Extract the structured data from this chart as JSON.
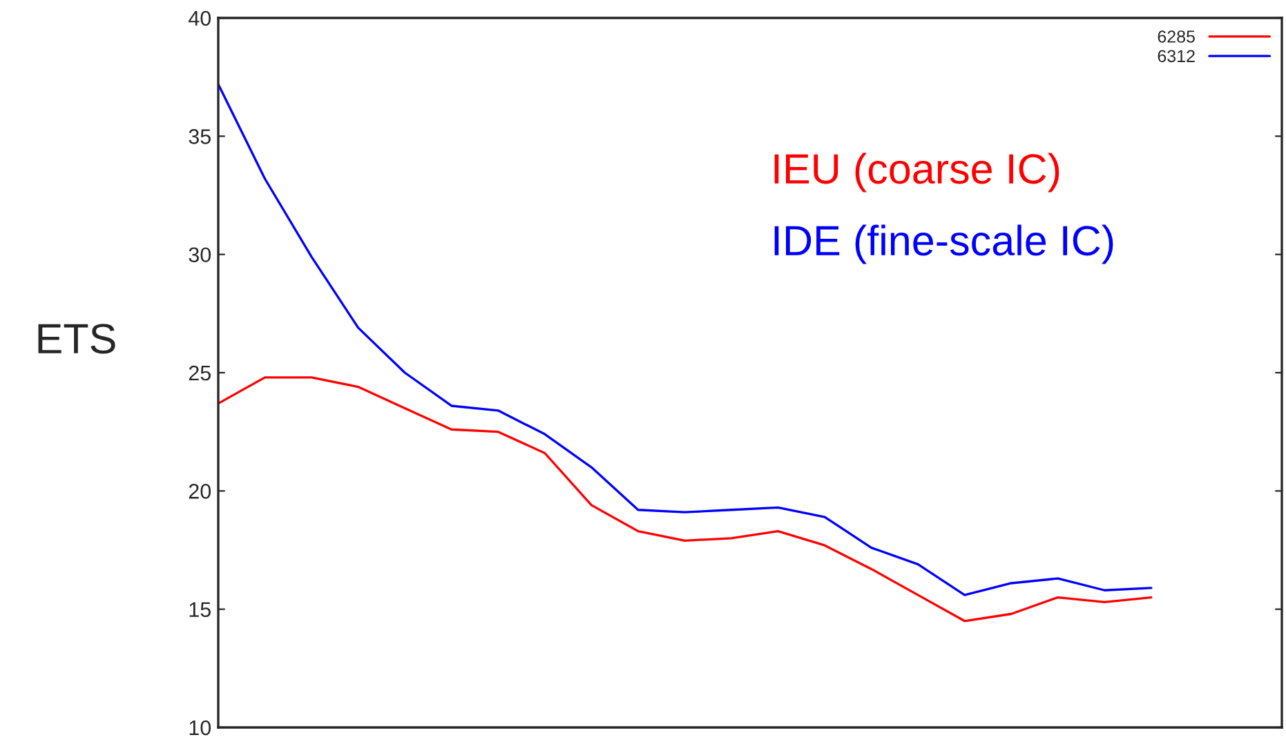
{
  "chart_data": {
    "type": "line",
    "ylabel": "ETS",
    "categories": [
      null,
      null,
      null,
      null,
      null,
      null,
      null,
      null,
      null,
      null,
      null,
      null,
      null,
      null,
      null,
      null,
      null,
      null,
      null,
      null,
      null
    ],
    "series": [
      {
        "name": "6285",
        "color": "#ff0000",
        "values": [
          23.7,
          24.8,
          24.8,
          24.4,
          23.5,
          22.6,
          22.5,
          21.6,
          19.4,
          18.3,
          17.9,
          18.0,
          18.3,
          17.7,
          16.7,
          15.6,
          14.5,
          14.8,
          15.5,
          15.3,
          15.5
        ]
      },
      {
        "name": "6312",
        "color": "#0000ff",
        "values": [
          37.2,
          33.2,
          29.9,
          26.9,
          25.0,
          23.6,
          23.4,
          22.4,
          21.0,
          19.2,
          19.1,
          19.2,
          19.3,
          18.9,
          17.6,
          16.9,
          15.6,
          16.1,
          16.3,
          15.8,
          15.9
        ]
      }
    ],
    "annotations": [
      "IEU (coarse IC)",
      "IDE (fine-scale IC)"
    ],
    "ylim": [
      10,
      40
    ],
    "yticks": [
      10,
      15,
      20,
      25,
      30,
      35,
      40
    ],
    "grid": false,
    "legend": "top right",
    "tick_labels": "y"
  }
}
